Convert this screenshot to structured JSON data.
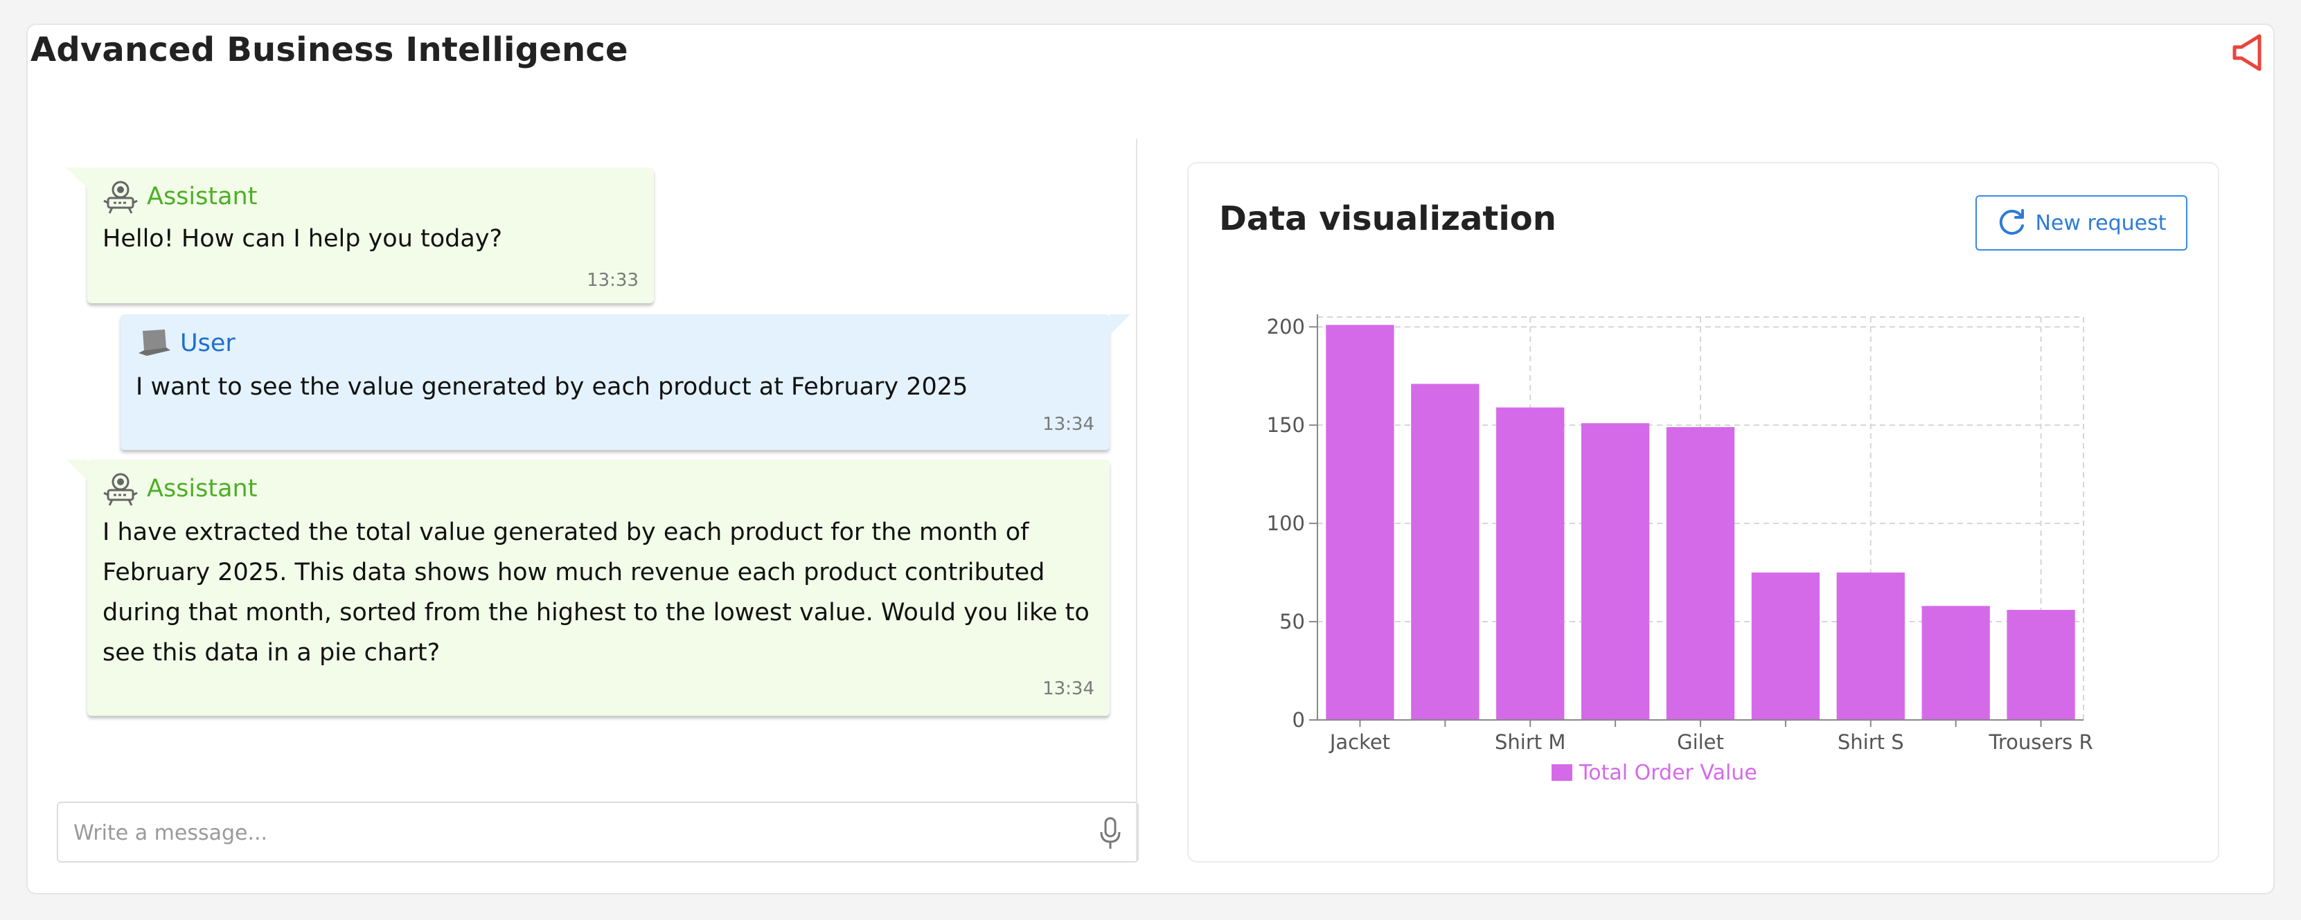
{
  "app": {
    "title": "Advanced Business Intelligence"
  },
  "colors": {
    "assistant": "#4caf25",
    "user": "#1e6fd0",
    "accent": "#2e7bd8",
    "bar": "#d56ae8",
    "speaker": "#e8453c"
  },
  "icons": {
    "speaker": "speaker-icon",
    "assistant": "robot-icon",
    "user": "laptop-icon",
    "mic": "microphone-icon",
    "refresh": "refresh-icon"
  },
  "messages": [
    {
      "role": "assistant",
      "author": "Assistant",
      "text": "Hello! How can I help you today?",
      "time": "13:33"
    },
    {
      "role": "user",
      "author": "User",
      "text": "I want to see the value generated by each product at February 2025",
      "time": "13:34"
    },
    {
      "role": "assistant",
      "author": "Assistant",
      "text": "I have extracted the total value generated by each product for the month of February 2025. This data shows how much revenue each product contributed during that month, sorted from the highest to the lowest value. Would you like to see this data in a pie chart?",
      "time": "13:34"
    }
  ],
  "composer": {
    "placeholder": "Write a message..."
  },
  "viz": {
    "title": "Data visualization",
    "new_request_label": "New request"
  },
  "chart_data": {
    "type": "bar",
    "categories": [
      "Jacket",
      "",
      "Shirt M",
      "",
      "Gilet",
      "",
      "Shirt S",
      "",
      "Trousers R"
    ],
    "series": [
      {
        "name": "Total Order Value",
        "values": [
          201,
          171,
          159,
          151,
          149,
          75,
          75,
          58,
          56
        ]
      }
    ],
    "y_ticks": [
      0,
      50,
      100,
      150,
      200
    ],
    "ylim": [
      0,
      205
    ],
    "grid": true,
    "legend": "bottom"
  }
}
